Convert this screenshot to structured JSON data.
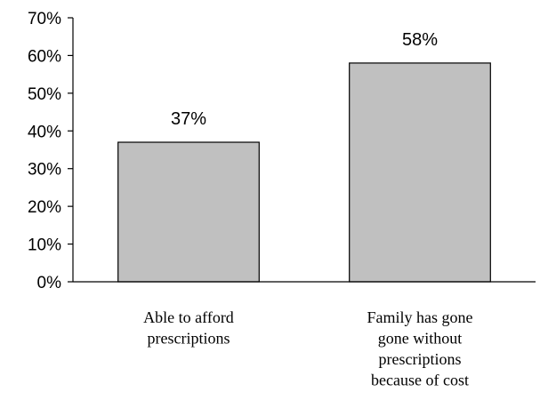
{
  "chart_data": {
    "type": "bar",
    "categories": [
      [
        "Able to afford",
        "prescriptions"
      ],
      [
        "Family has gone",
        "gone without",
        "prescriptions",
        "because of cost"
      ]
    ],
    "values": [
      37,
      58
    ],
    "data_labels": [
      "37%",
      "58%"
    ],
    "ylim": [
      0,
      70
    ],
    "yticks": [
      0,
      10,
      20,
      30,
      40,
      50,
      60,
      70
    ],
    "ytick_labels": [
      "0%",
      "10%",
      "20%",
      "30%",
      "40%",
      "50%",
      "60%",
      "70%"
    ],
    "grid": false,
    "bar_color": "#c0c0c0",
    "bar_edge_color": "#000000",
    "title": "",
    "xlabel": "",
    "ylabel": ""
  }
}
